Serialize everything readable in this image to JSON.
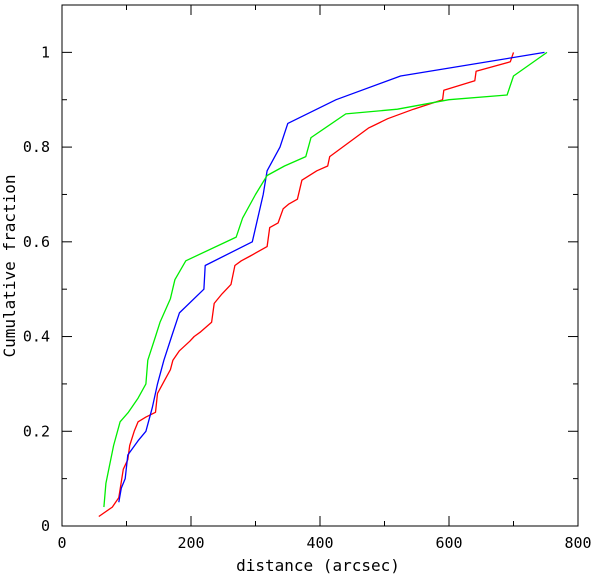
{
  "chart_data": {
    "type": "line",
    "title": "",
    "xlabel": "distance (arcsec)",
    "ylabel": "Cumulative fraction",
    "xlim": [
      0,
      800
    ],
    "ylim": [
      0,
      1.1
    ],
    "x_ticks": [
      0,
      200,
      400,
      600,
      800
    ],
    "x_tick_labels": [
      "0",
      "200",
      "400",
      "600",
      "800"
    ],
    "y_ticks": [
      0,
      0.2,
      0.4,
      0.6,
      0.8,
      1.0
    ],
    "y_tick_labels": [
      "0",
      "0.2",
      "0.4",
      "0.6",
      "0.8",
      "1"
    ],
    "grid": false,
    "legend": "none",
    "series": [
      {
        "color": "#ff0000",
        "points": [
          [
            57,
            0.02
          ],
          [
            78,
            0.04
          ],
          [
            88,
            0.06
          ],
          [
            95,
            0.12
          ],
          [
            102,
            0.14
          ],
          [
            105,
            0.17
          ],
          [
            112,
            0.2
          ],
          [
            118,
            0.22
          ],
          [
            130,
            0.23
          ],
          [
            145,
            0.24
          ],
          [
            148,
            0.28
          ],
          [
            160,
            0.31
          ],
          [
            168,
            0.33
          ],
          [
            172,
            0.35
          ],
          [
            182,
            0.37
          ],
          [
            198,
            0.39
          ],
          [
            205,
            0.4
          ],
          [
            215,
            0.41
          ],
          [
            232,
            0.43
          ],
          [
            236,
            0.47
          ],
          [
            248,
            0.49
          ],
          [
            262,
            0.51
          ],
          [
            268,
            0.55
          ],
          [
            278,
            0.56
          ],
          [
            292,
            0.57
          ],
          [
            318,
            0.59
          ],
          [
            322,
            0.63
          ],
          [
            335,
            0.64
          ],
          [
            343,
            0.67
          ],
          [
            352,
            0.68
          ],
          [
            365,
            0.69
          ],
          [
            372,
            0.73
          ],
          [
            395,
            0.75
          ],
          [
            412,
            0.76
          ],
          [
            415,
            0.78
          ],
          [
            435,
            0.8
          ],
          [
            455,
            0.82
          ],
          [
            475,
            0.84
          ],
          [
            505,
            0.86
          ],
          [
            545,
            0.88
          ],
          [
            590,
            0.9
          ],
          [
            592,
            0.92
          ],
          [
            640,
            0.94
          ],
          [
            642,
            0.96
          ],
          [
            695,
            0.98
          ],
          [
            700,
            1.0
          ]
        ]
      },
      {
        "color": "#0000ff",
        "points": [
          [
            88,
            0.05
          ],
          [
            92,
            0.08
          ],
          [
            98,
            0.1
          ],
          [
            102,
            0.15
          ],
          [
            118,
            0.18
          ],
          [
            130,
            0.2
          ],
          [
            140,
            0.25
          ],
          [
            148,
            0.3
          ],
          [
            158,
            0.35
          ],
          [
            170,
            0.4
          ],
          [
            182,
            0.45
          ],
          [
            220,
            0.5
          ],
          [
            222,
            0.55
          ],
          [
            295,
            0.6
          ],
          [
            312,
            0.7
          ],
          [
            318,
            0.75
          ],
          [
            338,
            0.8
          ],
          [
            350,
            0.85
          ],
          [
            425,
            0.9
          ],
          [
            525,
            0.95
          ],
          [
            748,
            1.0
          ]
        ]
      },
      {
        "color": "#00ee00",
        "points": [
          [
            65,
            0.04
          ],
          [
            68,
            0.09
          ],
          [
            80,
            0.17
          ],
          [
            90,
            0.22
          ],
          [
            103,
            0.24
          ],
          [
            118,
            0.27
          ],
          [
            130,
            0.3
          ],
          [
            133,
            0.35
          ],
          [
            145,
            0.4
          ],
          [
            152,
            0.43
          ],
          [
            168,
            0.48
          ],
          [
            175,
            0.52
          ],
          [
            192,
            0.56
          ],
          [
            270,
            0.61
          ],
          [
            280,
            0.65
          ],
          [
            300,
            0.7
          ],
          [
            318,
            0.74
          ],
          [
            345,
            0.76
          ],
          [
            378,
            0.78
          ],
          [
            386,
            0.82
          ],
          [
            440,
            0.87
          ],
          [
            520,
            0.88
          ],
          [
            600,
            0.9
          ],
          [
            690,
            0.91
          ],
          [
            700,
            0.95
          ],
          [
            752,
            1.0
          ]
        ]
      }
    ]
  }
}
